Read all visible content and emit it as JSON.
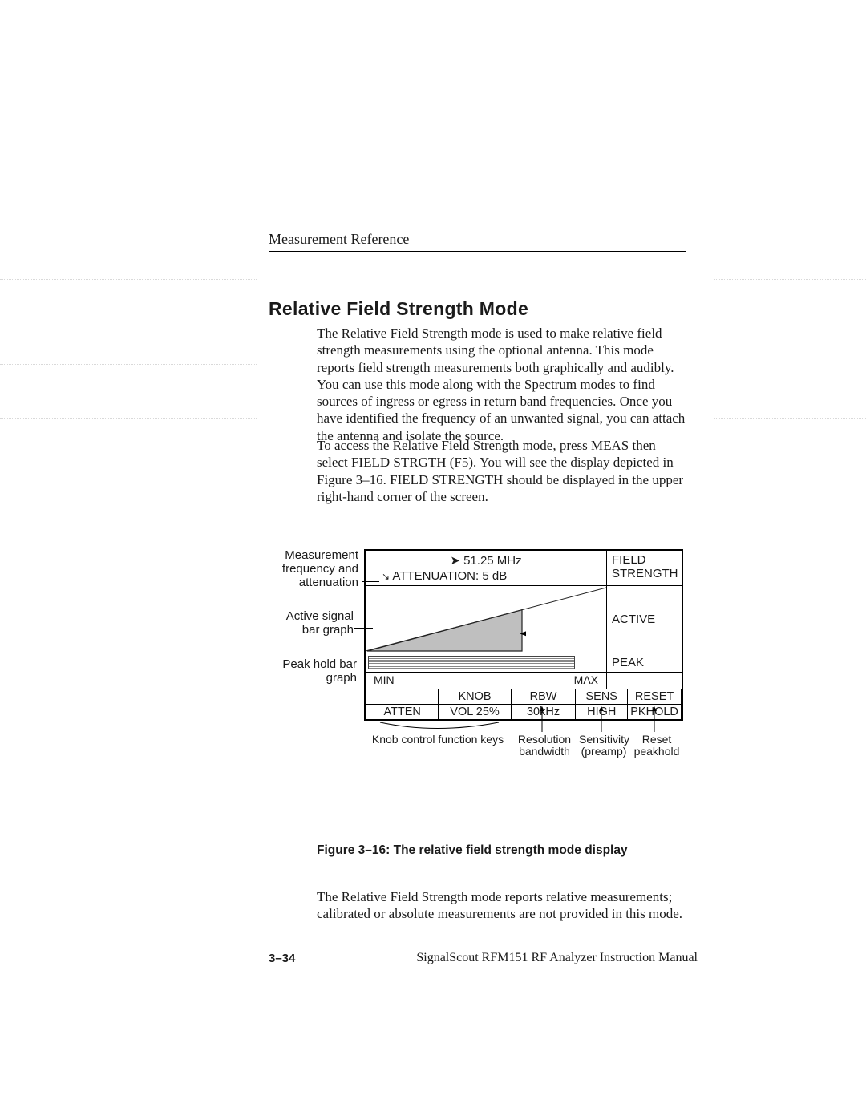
{
  "page": {
    "running_head": "Measurement Reference",
    "section_title": "Relative Field Strength Mode",
    "para1": "The Relative Field Strength mode is used to make relative field strength measurements using the optional antenna. This mode reports field strength measurements both graphically and audibly. You can use this mode along with the Spectrum modes to find sources of ingress or egress in return band frequencies. Once you have identified the frequency of an unwanted signal, you can attach the antenna and isolate the source.",
    "para2": "To access the Relative Field Strength mode, press MEAS then select FIELD STRGTH (F5). You will see the display depicted in Figure 3–16. FIELD STRENGTH should be displayed in the upper right-hand corner of the screen.",
    "para3": "The Relative Field Strength mode reports relative measurements; calibrated or absolute measurements are not provided in this mode.",
    "fig_caption": "Figure 3–16: The relative field strength mode display",
    "page_num": "3–34",
    "manual_title": "SignalScout RFM151 RF Analyzer Instruction Manual"
  },
  "callouts": {
    "meas_freq_atten": "Measurement frequency and attenuation",
    "active_bar": "Active signal bar graph",
    "peak_bar": "Peak hold bar graph",
    "knob_fn": "Knob control function keys",
    "rbw": "Resolution bandwidth",
    "sens": "Sensitivity (preamp)",
    "reset": "Reset peakhold"
  },
  "display": {
    "frequency": "51.25 MHz",
    "attenuation_label": "ATTENUATION: 5 dB",
    "mode_line1": "FIELD",
    "mode_line2": "STRENGTH",
    "active_label": "ACTIVE",
    "peak_label": "PEAK",
    "min_label": "MIN",
    "max_label": "MAX",
    "active_fill_pct": 65,
    "peak_fill_pct": 88
  },
  "softkeys": {
    "row1": [
      "KNOB",
      "RBW",
      "SENS",
      "RESET"
    ],
    "row2": [
      "ATTEN",
      "VOL 25%",
      "30kHz",
      "HIGH",
      "PKHOLD"
    ],
    "col_widths_pct": [
      23,
      23,
      20.5,
      16.5,
      17
    ]
  },
  "style": {
    "bg": "#ffffff",
    "text": "#1a1a1a",
    "triangle_fill": "#bfbfbf",
    "triangle_stroke": "#222222",
    "peak_fill_pattern": "#888888"
  }
}
